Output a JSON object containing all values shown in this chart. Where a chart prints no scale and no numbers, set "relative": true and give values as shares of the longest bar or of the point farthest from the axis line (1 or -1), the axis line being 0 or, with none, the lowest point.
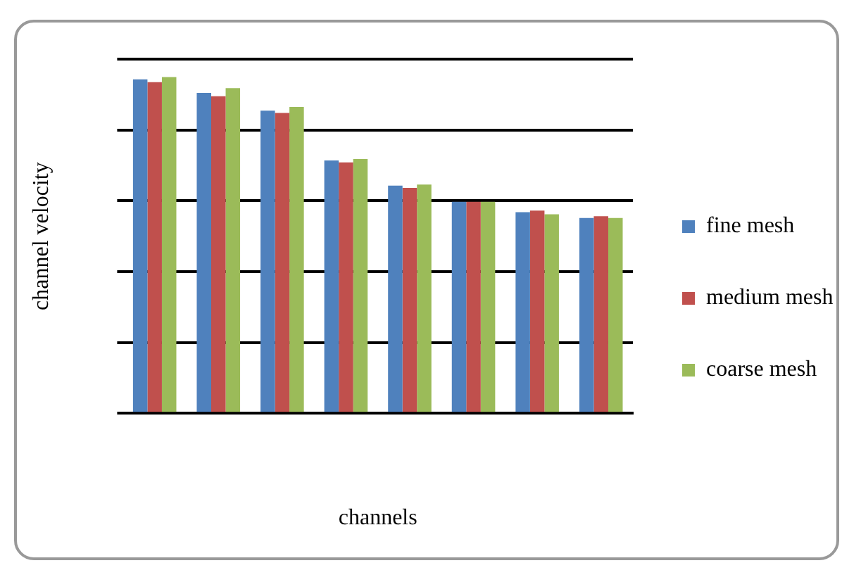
{
  "chart_data": {
    "type": "bar",
    "relative": true,
    "xlabel": "channels",
    "ylabel": "channel velocity",
    "categories": [
      null,
      null,
      null,
      null,
      null,
      null,
      null,
      null
    ],
    "series": [
      {
        "name": "fine mesh",
        "color": "#4f81bd",
        "values": [
          0.993,
          0.953,
          0.9,
          0.752,
          0.677,
          0.629,
          0.598,
          0.581
        ]
      },
      {
        "name": "medium mesh",
        "color": "#c0504d",
        "values": [
          0.985,
          0.943,
          0.893,
          0.746,
          0.67,
          0.629,
          0.603,
          0.586
        ]
      },
      {
        "name": "coarse mesh",
        "color": "#9bbb59",
        "values": [
          1,
          0.967,
          0.911,
          0.756,
          0.68,
          0.629,
          0.592,
          0.581
        ]
      }
    ],
    "grid": "y",
    "legend": "right"
  }
}
